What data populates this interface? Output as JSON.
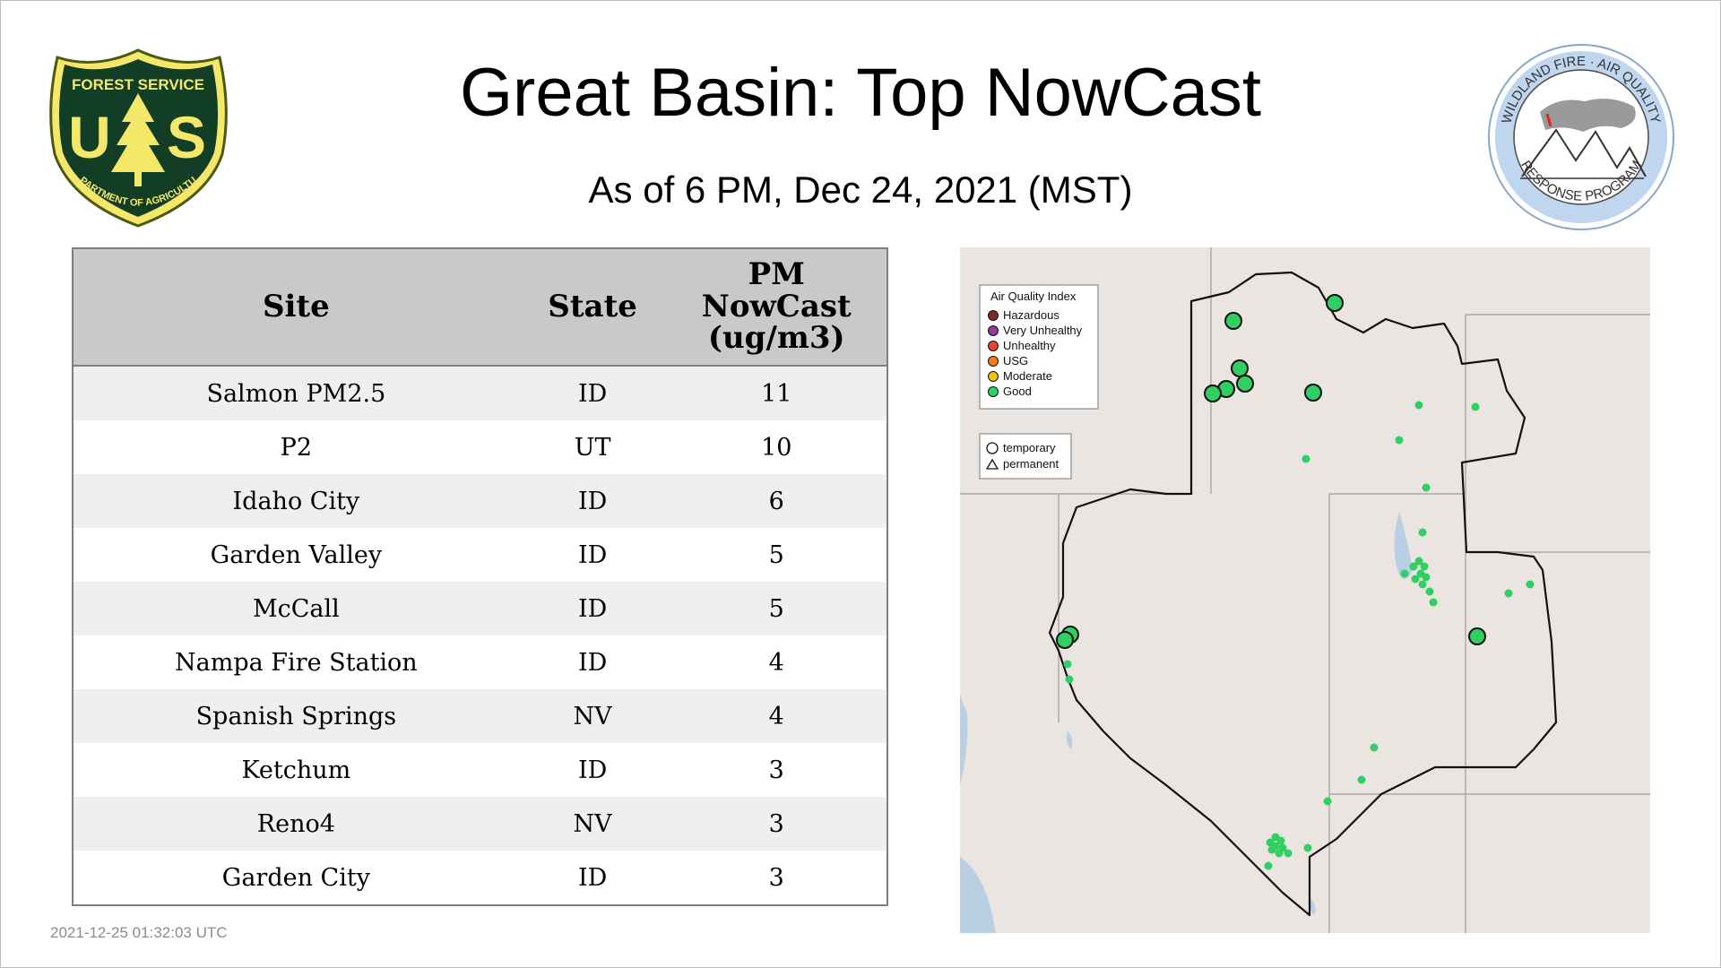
{
  "title": "Great Basin: Top NowCast",
  "subtitle": "As of  6 PM, Dec 24, 2021 (MST)",
  "timestamp": "2021-12-25 01:32:03 UTC",
  "logos": {
    "forest_service": {
      "top": "FOREST SERVICE",
      "bottom": "DEPARTMENT OF AGRICULTURE",
      "letters": "US"
    },
    "wildland": {
      "top": "WILDLAND FIRE · AIR QUALITY",
      "bottom": "RESPONSE PROGRAM"
    }
  },
  "table": {
    "headers": {
      "site": "Site",
      "state": "State",
      "pm_line1": "PM",
      "pm_line2": "NowCast",
      "pm_line3": "(ug/m3)"
    },
    "rows": [
      {
        "site": "Salmon PM2.5",
        "state": "ID",
        "pm": "11"
      },
      {
        "site": "P2",
        "state": "UT",
        "pm": "10"
      },
      {
        "site": "Idaho City",
        "state": "ID",
        "pm": "6"
      },
      {
        "site": "Garden Valley",
        "state": "ID",
        "pm": "5"
      },
      {
        "site": "McCall",
        "state": "ID",
        "pm": "5"
      },
      {
        "site": "Nampa Fire Station",
        "state": "ID",
        "pm": "4"
      },
      {
        "site": "Spanish Springs",
        "state": "NV",
        "pm": "4"
      },
      {
        "site": "Ketchum",
        "state": "ID",
        "pm": "3"
      },
      {
        "site": "Reno4",
        "state": "NV",
        "pm": "3"
      },
      {
        "site": "Garden City",
        "state": "ID",
        "pm": "3"
      }
    ]
  },
  "map": {
    "legend": {
      "title": "Air Quality Index",
      "items": [
        {
          "label": "Hazardous",
          "color": "#7e2a2a"
        },
        {
          "label": "Very Unhealthy",
          "color": "#8f3f97"
        },
        {
          "label": "Unhealthy",
          "color": "#e8432e"
        },
        {
          "label": "USG",
          "color": "#ef7d1f"
        },
        {
          "label": "Moderate",
          "color": "#f2c010"
        },
        {
          "label": "Good",
          "color": "#2fcf63"
        }
      ]
    },
    "marker_legend": {
      "temporary": "temporary",
      "permanent": "permanent"
    },
    "colors": {
      "good": "#2fcf63",
      "land": "#ebe5e2",
      "water": "#b9cfe3",
      "boundary": "#111111"
    }
  }
}
